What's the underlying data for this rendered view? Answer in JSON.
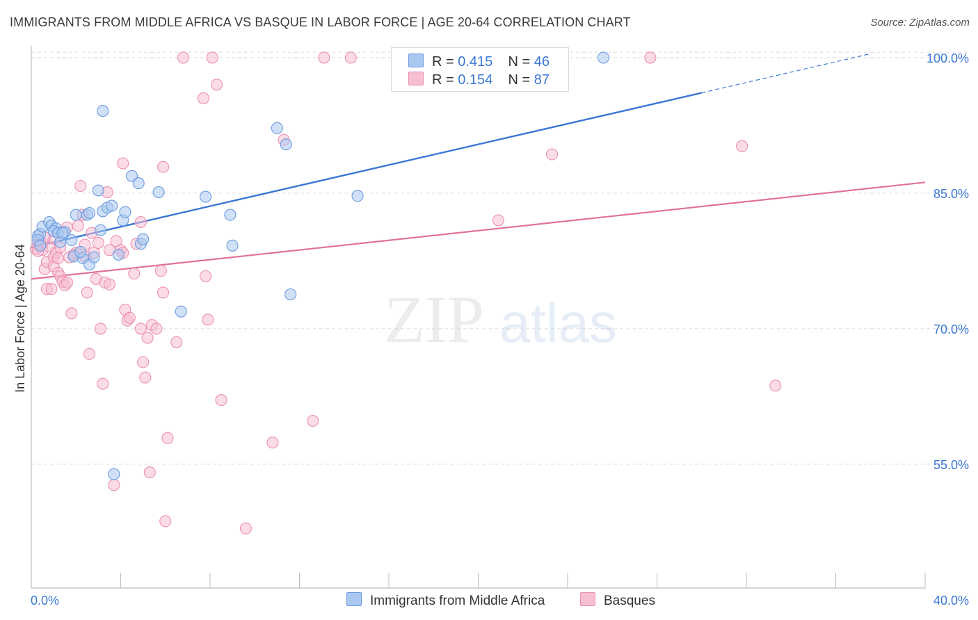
{
  "title": "IMMIGRANTS FROM MIDDLE AFRICA VS BASQUE IN LABOR FORCE | AGE 20-64 CORRELATION CHART",
  "source": "Source: ZipAtlas.com",
  "watermark": {
    "zip": "ZIP",
    "atlas": "atlas"
  },
  "legend_top": {
    "r_label": "R =",
    "n_label": "N =",
    "rows": [
      {
        "r": "0.415",
        "n": "46"
      },
      {
        "r": "0.154",
        "n": "87"
      }
    ]
  },
  "colors": {
    "blue_fill": "#a9c8f0",
    "blue_stroke": "#6b9be0",
    "blue_line": "#3a78d4",
    "pink_fill": "#f7bfd2",
    "pink_stroke": "#eb8fb0",
    "pink_line": "#e2709b",
    "axis_value_color": "#3a78d4"
  },
  "chart_data": {
    "type": "scatter",
    "title": "IMMIGRANTS FROM MIDDLE AFRICA VS BASQUE IN LABOR FORCE | AGE 20-64 CORRELATION CHART",
    "ylabel": "In Labor Force | Age 20-64",
    "xlim": [
      0,
      40
    ],
    "ylim": [
      41.3,
      101.3
    ],
    "x_tick_labels": [
      "0.0%",
      "40.0%"
    ],
    "y_ticks": [
      55,
      70,
      85,
      100
    ],
    "y_tick_labels": [
      "55.0%",
      "70.0%",
      "85.0%",
      "100.0%"
    ],
    "grid": "horizontal dashed",
    "legend_position": "bottom",
    "series": [
      {
        "name": "Immigrants from Middle Africa",
        "trend": {
          "x0": 0,
          "y0": 79.0,
          "x1": 30.0,
          "y1": 96.1,
          "dash_to_x": 37.5,
          "dash_to_y": 100.4
        },
        "points": [
          [
            0.3,
            80.3
          ],
          [
            0.4,
            80.5
          ],
          [
            0.3,
            79.8
          ],
          [
            0.4,
            79.2
          ],
          [
            0.5,
            81.3
          ],
          [
            0.8,
            81.8
          ],
          [
            0.9,
            81.4
          ],
          [
            1.1,
            81.1
          ],
          [
            1.0,
            80.8
          ],
          [
            1.2,
            80.6
          ],
          [
            1.5,
            80.7
          ],
          [
            1.3,
            79.6
          ],
          [
            1.4,
            80.6
          ],
          [
            1.9,
            78.0
          ],
          [
            2.0,
            82.6
          ],
          [
            2.3,
            77.8
          ],
          [
            2.5,
            82.6
          ],
          [
            2.6,
            82.8
          ],
          [
            2.6,
            77.1
          ],
          [
            2.8,
            77.9
          ],
          [
            3.0,
            85.3
          ],
          [
            3.1,
            80.9
          ],
          [
            3.2,
            83.0
          ],
          [
            3.4,
            83.4
          ],
          [
            3.6,
            83.6
          ],
          [
            3.9,
            78.2
          ],
          [
            4.1,
            82.0
          ],
          [
            4.2,
            82.9
          ],
          [
            4.5,
            86.9
          ],
          [
            4.8,
            86.1
          ],
          [
            4.9,
            79.4
          ],
          [
            5.0,
            79.9
          ],
          [
            5.7,
            85.1
          ],
          [
            6.7,
            71.9
          ],
          [
            7.8,
            84.6
          ],
          [
            8.9,
            82.6
          ],
          [
            9.0,
            79.2
          ],
          [
            11.0,
            92.2
          ],
          [
            11.4,
            90.4
          ],
          [
            11.6,
            73.8
          ],
          [
            14.6,
            84.7
          ],
          [
            3.2,
            94.1
          ],
          [
            3.7,
            53.9
          ],
          [
            25.6,
            100.0
          ],
          [
            1.8,
            79.8
          ],
          [
            2.2,
            78.5
          ]
        ]
      },
      {
        "name": "Basques",
        "trend": {
          "x0": 0,
          "y0": 75.5,
          "x1": 40.0,
          "y1": 86.2
        },
        "points": [
          [
            0.2,
            78.8
          ],
          [
            0.3,
            79.3
          ],
          [
            0.4,
            79.6
          ],
          [
            0.5,
            78.7
          ],
          [
            0.6,
            76.6
          ],
          [
            0.7,
            74.4
          ],
          [
            0.7,
            77.4
          ],
          [
            0.8,
            79.1
          ],
          [
            0.9,
            74.4
          ],
          [
            1.0,
            77.9
          ],
          [
            1.0,
            76.9
          ],
          [
            1.1,
            78.4
          ],
          [
            1.2,
            76.2
          ],
          [
            1.2,
            77.8
          ],
          [
            1.3,
            75.8
          ],
          [
            1.4,
            75.2
          ],
          [
            1.5,
            74.8
          ],
          [
            1.6,
            75.1
          ],
          [
            1.7,
            77.9
          ],
          [
            1.8,
            71.7
          ],
          [
            2.0,
            78.4
          ],
          [
            2.1,
            81.4
          ],
          [
            2.2,
            85.8
          ],
          [
            2.3,
            82.6
          ],
          [
            2.4,
            78.0
          ],
          [
            2.5,
            74.0
          ],
          [
            2.6,
            67.2
          ],
          [
            2.7,
            80.6
          ],
          [
            2.8,
            78.4
          ],
          [
            2.9,
            75.5
          ],
          [
            3.0,
            79.5
          ],
          [
            3.1,
            70.0
          ],
          [
            3.2,
            63.9
          ],
          [
            3.3,
            75.1
          ],
          [
            3.4,
            85.1
          ],
          [
            3.5,
            78.7
          ],
          [
            3.5,
            74.9
          ],
          [
            3.7,
            52.7
          ],
          [
            3.8,
            79.7
          ],
          [
            4.0,
            78.7
          ],
          [
            4.1,
            78.4
          ],
          [
            4.1,
            88.3
          ],
          [
            4.2,
            72.1
          ],
          [
            4.3,
            70.9
          ],
          [
            4.4,
            71.2
          ],
          [
            4.6,
            76.1
          ],
          [
            4.7,
            79.4
          ],
          [
            4.9,
            81.8
          ],
          [
            4.9,
            70.0
          ],
          [
            5.0,
            66.3
          ],
          [
            5.1,
            64.6
          ],
          [
            5.2,
            69.0
          ],
          [
            5.3,
            54.1
          ],
          [
            5.4,
            70.4
          ],
          [
            5.6,
            70.0
          ],
          [
            5.8,
            76.4
          ],
          [
            5.9,
            74.0
          ],
          [
            5.9,
            87.9
          ],
          [
            6.0,
            48.7
          ],
          [
            6.1,
            57.9
          ],
          [
            6.5,
            68.5
          ],
          [
            6.8,
            100.0
          ],
          [
            7.7,
            95.5
          ],
          [
            7.8,
            75.8
          ],
          [
            7.9,
            71.0
          ],
          [
            8.1,
            100.0
          ],
          [
            8.3,
            97.0
          ],
          [
            8.5,
            62.1
          ],
          [
            9.6,
            47.9
          ],
          [
            10.8,
            57.4
          ],
          [
            11.3,
            90.9
          ],
          [
            12.6,
            59.8
          ],
          [
            13.1,
            100.0
          ],
          [
            14.3,
            100.0
          ],
          [
            20.9,
            82.0
          ],
          [
            23.3,
            89.3
          ],
          [
            27.7,
            100.0
          ],
          [
            31.8,
            90.2
          ],
          [
            33.3,
            63.7
          ],
          [
            0.5,
            79.5
          ],
          [
            1.0,
            80.0
          ],
          [
            1.6,
            81.2
          ],
          [
            1.9,
            78.2
          ],
          [
            0.3,
            78.6
          ],
          [
            2.4,
            79.3
          ],
          [
            1.3,
            79.0
          ],
          [
            0.6,
            80.1
          ]
        ]
      }
    ]
  },
  "bottom_legend": [
    {
      "label": "Immigrants from Middle Africa"
    },
    {
      "label": "Basques"
    }
  ]
}
